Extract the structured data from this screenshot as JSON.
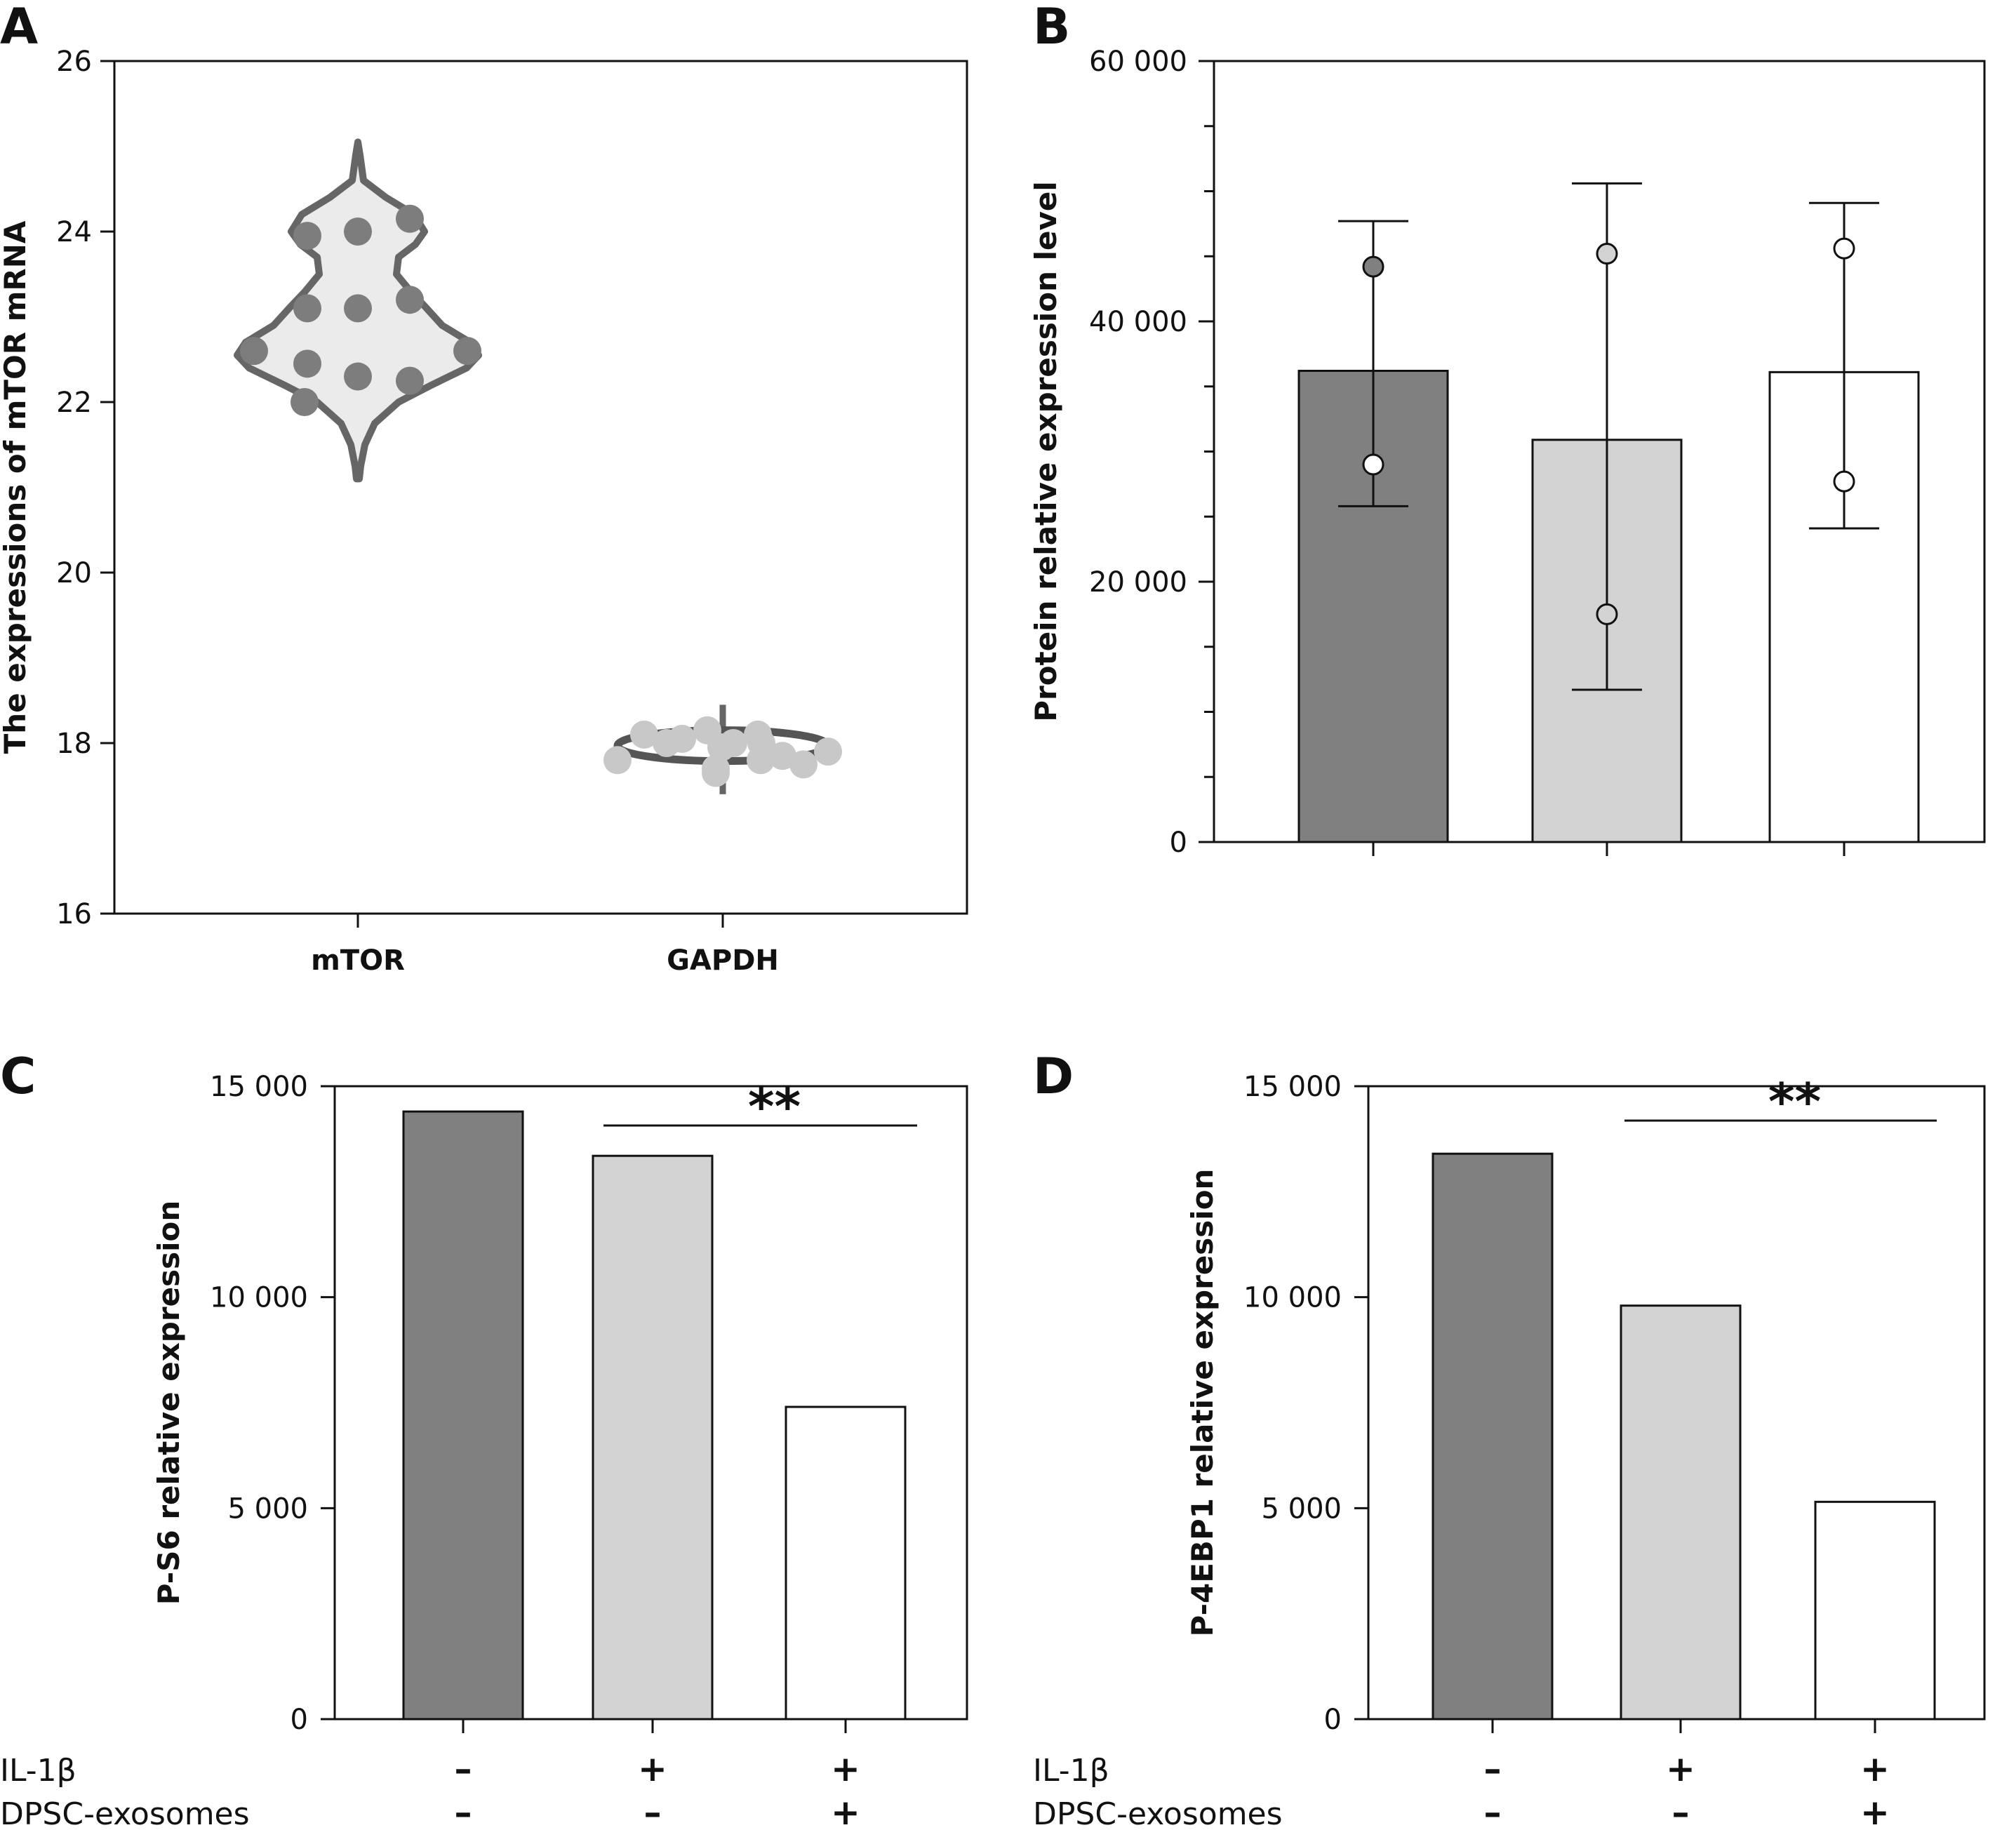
{
  "colors": {
    "dark": "#808080",
    "light": "#d3d3d3",
    "white": "#ffffff",
    "violin_fill": "#ebebeb",
    "violin_line": "#666666",
    "dot_dark": "#7d7d7d",
    "dot_light": "#c8c8c8",
    "axis": "#111111"
  },
  "chart_data": [
    {
      "panel": "A",
      "type": "scatter",
      "style": "violin",
      "title": "",
      "xlabel": "",
      "ylabel": "The expressions of mTOR mRNA",
      "ylim": [
        16,
        26
      ],
      "yticks": [
        "16",
        "18",
        "20",
        "22",
        "24",
        "26"
      ],
      "categories": [
        "mTOR",
        "GAPDH"
      ],
      "series": [
        {
          "category": "mTOR",
          "values": [
            23.95,
            24.0,
            24.15,
            23.1,
            23.1,
            23.2,
            22.6,
            22.45,
            22.3,
            22.25,
            22.6,
            22.0
          ]
        },
        {
          "category": "GAPDH",
          "values": [
            18.1,
            18.0,
            18.05,
            18.15,
            18.0,
            17.9,
            17.7,
            17.8,
            17.95,
            18.1,
            17.8,
            17.85,
            17.75,
            18.0,
            17.65
          ]
        }
      ]
    },
    {
      "panel": "B",
      "type": "bar",
      "title": "",
      "xlabel": "",
      "ylabel": "Protein relative expression level",
      "ylim": [
        0,
        60000
      ],
      "yticks": [
        "0",
        "20 000",
        "40 000",
        "60 000"
      ],
      "categories": [
        "",
        "",
        ""
      ],
      "values": [
        36200,
        30900,
        36100
      ],
      "error": [
        [
          25800,
          47700
        ],
        [
          11700,
          50600
        ],
        [
          24100,
          49100
        ]
      ],
      "points": [
        [
          44200,
          29000
        ],
        [
          45200,
          17500
        ],
        [
          45600,
          27700
        ]
      ]
    },
    {
      "panel": "C",
      "type": "bar",
      "title": "",
      "xlabel": "",
      "ylabel": "P-S6 relative expression",
      "ylim": [
        0,
        15000
      ],
      "yticks": [
        "0",
        "5 000",
        "10 000",
        "15 000"
      ],
      "values": [
        14400,
        13350,
        7400
      ],
      "significance": "**",
      "rows": [
        {
          "label": "IL-1β",
          "signs": [
            "–",
            "+",
            "+"
          ]
        },
        {
          "label": "DPSC-exosomes",
          "signs": [
            "–",
            "–",
            "+"
          ]
        }
      ]
    },
    {
      "panel": "D",
      "type": "bar",
      "title": "",
      "xlabel": "",
      "ylabel": "P-4EBP1 relative expression",
      "ylim": [
        0,
        15000
      ],
      "yticks": [
        "0",
        "5 000",
        "10 000",
        "15 000"
      ],
      "values": [
        13400,
        9800,
        5150
      ],
      "significance": "**",
      "rows": [
        {
          "label": "IL-1β",
          "signs": [
            "–",
            "+",
            "+"
          ]
        },
        {
          "label": "DPSC-exosomes",
          "signs": [
            "–",
            "–",
            "+"
          ]
        }
      ]
    }
  ]
}
